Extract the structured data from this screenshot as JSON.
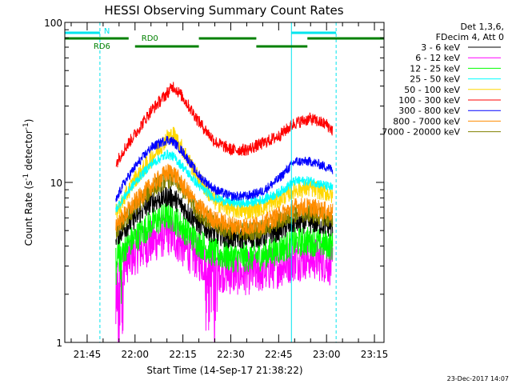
{
  "chart_data": {
    "type": "line",
    "title": "HESSI Observing Summary Count Rates",
    "xlabel": "Start Time (14-Sep-17 21:38:22)",
    "ylabel_main": "Count Rate (s",
    "ylabel_sup1": "-1",
    "ylabel_mid": " detector",
    "ylabel_sup2": "-1",
    "ylabel_end": ")",
    "y_scale": "log",
    "ylim": [
      1,
      100
    ],
    "y_ticks": [
      {
        "value": 1,
        "label": "1"
      },
      {
        "value": 10,
        "label": "10"
      },
      {
        "value": 100,
        "label": "100"
      }
    ],
    "xlim_minutes": [
      -22,
      78
    ],
    "x_ticks": [
      {
        "minutes": -15,
        "label": "21:45"
      },
      {
        "minutes": 0,
        "label": "22:00"
      },
      {
        "minutes": 15,
        "label": "22:15"
      },
      {
        "minutes": 30,
        "label": "22:30"
      },
      {
        "minutes": 45,
        "label": "22:45"
      },
      {
        "minutes": 60,
        "label": "23:00"
      },
      {
        "minutes": 75,
        "label": "23:15"
      }
    ],
    "legend_header": [
      "Det 1,3,6,",
      "FDecim 4, Att 0"
    ],
    "series": [
      {
        "name": "3 - 6 keV",
        "color": "#000000"
      },
      {
        "name": "6 - 12 keV",
        "color": "#ff00ff"
      },
      {
        "name": "12 - 25 keV",
        "color": "#00ff00"
      },
      {
        "name": "25 - 50 keV",
        "color": "#00ffff"
      },
      {
        "name": "50 - 100 keV",
        "color": "#ffd700"
      },
      {
        "name": "100 - 300 keV",
        "color": "#ff0000"
      },
      {
        "name": "300 - 800 keV",
        "color": "#0000ff"
      },
      {
        "name": "800 - 7000 keV",
        "color": "#ff8c00"
      },
      {
        "name": "7000 - 20000 keV",
        "color": "#808000"
      }
    ],
    "bands": [
      {
        "series": "100 - 300 keV",
        "color": "#ff0000",
        "z": 9,
        "x": [
          -6,
          -4,
          0,
          5,
          10,
          12,
          15,
          20,
          25,
          30,
          35,
          40,
          45,
          50,
          55,
          60,
          62
        ],
        "y": [
          13,
          15.5,
          20,
          28,
          36,
          40,
          34,
          24,
          18,
          16,
          16,
          17.5,
          19.5,
          23.5,
          25,
          23,
          21
        ],
        "noise": 0.09
      },
      {
        "series": "300 - 800 keV",
        "color": "#0000ff",
        "z": 8,
        "x": [
          -6,
          -4,
          0,
          5,
          10,
          12,
          15,
          20,
          25,
          30,
          35,
          40,
          45,
          50,
          55,
          60,
          62
        ],
        "y": [
          7.6,
          9.5,
          12.5,
          16.5,
          18.5,
          18,
          15.5,
          11,
          9,
          8.2,
          8.2,
          8.8,
          10.5,
          13.5,
          13.5,
          12.5,
          12
        ],
        "noise": 0.07
      },
      {
        "series": "25 - 50 keV",
        "color": "#00ffff",
        "z": 7,
        "x": [
          -6,
          -4,
          0,
          5,
          10,
          12,
          15,
          20,
          25,
          30,
          35,
          40,
          45,
          50,
          55,
          60,
          62
        ],
        "y": [
          6.8,
          7.8,
          10,
          13,
          15,
          14.5,
          12.5,
          9.5,
          8,
          7.5,
          7.4,
          7.8,
          8.6,
          10.2,
          10.2,
          9.5,
          9.2
        ],
        "noise": 0.07
      },
      {
        "series": "50 - 100 keV",
        "color": "#ffd700",
        "z": 6,
        "x": [
          -6,
          -4,
          0,
          5,
          10,
          12,
          15,
          20,
          25,
          30,
          35,
          40,
          45,
          50,
          55,
          60,
          62
        ],
        "y": [
          6.5,
          7.5,
          10.5,
          14,
          19,
          20,
          16,
          10.5,
          7.6,
          6.8,
          6.6,
          7,
          7.8,
          9,
          9.2,
          8.6,
          8.2
        ],
        "noise": 0.13
      },
      {
        "series": "800 - 7000 keV",
        "color": "#ff8c00",
        "z": 5,
        "x": [
          -6,
          -4,
          0,
          5,
          10,
          12,
          15,
          20,
          25,
          30,
          35,
          40,
          45,
          50,
          55,
          60,
          62
        ],
        "y": [
          5.5,
          6,
          7.5,
          9.5,
          11.5,
          11.5,
          9.5,
          7,
          5.8,
          5.4,
          5.3,
          5.5,
          6.2,
          7,
          7,
          6.6,
          6.4
        ],
        "noise": 0.14
      },
      {
        "series": "7000 - 20000 keV",
        "color": "#808000",
        "z": 4,
        "x": [
          -6,
          -4,
          0,
          5,
          10,
          12,
          15,
          20,
          25,
          30,
          35,
          40,
          45,
          50,
          55,
          60,
          62
        ],
        "y": [
          5,
          5.5,
          7,
          9,
          10.5,
          10.5,
          9,
          6.5,
          5.4,
          5,
          4.9,
          5.1,
          5.7,
          6.4,
          6.4,
          6,
          5.8
        ],
        "noise": 0.14
      },
      {
        "series": "3 - 6 keV",
        "color": "#000000",
        "z": 3,
        "x": [
          -6,
          -4,
          0,
          5,
          10,
          12,
          15,
          20,
          25,
          30,
          35,
          40,
          45,
          50,
          55,
          60,
          62
        ],
        "y": [
          4.6,
          5,
          6,
          7.5,
          8.2,
          8,
          7,
          5.5,
          4.8,
          4.5,
          4.5,
          4.6,
          5,
          5.6,
          5.6,
          5.4,
          5.2
        ],
        "noise": 0.16
      },
      {
        "series": "12 - 25 keV",
        "color": "#00ff00",
        "z": 2,
        "x": [
          -6,
          -4,
          0,
          5,
          10,
          12,
          15,
          20,
          25,
          30,
          35,
          40,
          45,
          50,
          55,
          60,
          62
        ],
        "y": [
          3.5,
          3.8,
          4.5,
          5.5,
          6.2,
          6,
          5.2,
          4.2,
          3.6,
          3.4,
          3.4,
          3.5,
          3.8,
          4.2,
          4.3,
          4.1,
          4
        ],
        "noise": 0.22
      },
      {
        "series": "6 - 12 keV",
        "color": "#ff00ff",
        "z": 1,
        "x": [
          -6,
          -4,
          0,
          5,
          10,
          12,
          15,
          20,
          25,
          30,
          35,
          40,
          45,
          50,
          55,
          60,
          62
        ],
        "y": [
          2.3,
          3,
          3.6,
          4.2,
          4.8,
          4.6,
          4,
          3.3,
          2.9,
          2.7,
          2.7,
          2.8,
          3,
          3.3,
          3.4,
          3.2,
          3
        ],
        "noise": 0.32
      }
    ],
    "cyan_vertical_lines_minutes": [
      -22,
      -11,
      49,
      63
    ],
    "dashed_vertical_lines_minutes": [
      -11,
      63
    ],
    "flag_labels": {
      "night": "N",
      "rd0": "RD0",
      "rd6": "RD6"
    },
    "night_segments": [
      [
        -22,
        -11
      ],
      [
        49,
        63
      ]
    ],
    "rd0_segments": [
      [
        -22,
        -2
      ],
      [
        20,
        38
      ],
      [
        54,
        78
      ]
    ],
    "rd6_segments": [
      [
        0,
        20
      ],
      [
        38,
        54
      ]
    ],
    "timestamp": "23-Dec-2017 14:07"
  }
}
